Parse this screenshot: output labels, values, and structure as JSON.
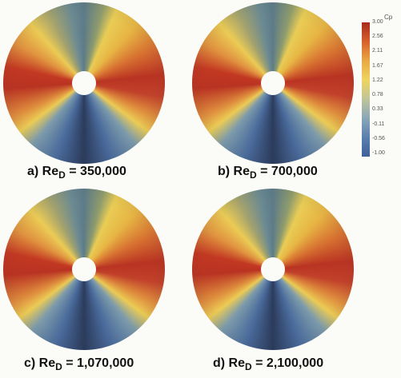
{
  "colorbar": {
    "title": "Cp",
    "labels": [
      "3.00",
      "2.56",
      "2.11",
      "1.67",
      "1.22",
      "0.78",
      "0.33",
      "-0.11",
      "-0.56",
      "-1.00"
    ]
  },
  "panels": [
    {
      "prefix": "a) Re",
      "subscript": "D",
      "value": "= 350,000"
    },
    {
      "prefix": "b) Re",
      "subscript": "D",
      "value": "= 700,000"
    },
    {
      "prefix": "c) Re",
      "subscript": "D",
      "value": "= 1,070,000"
    },
    {
      "prefix": "d) Re",
      "subscript": "D",
      "value": "= 2,100,000"
    }
  ]
}
